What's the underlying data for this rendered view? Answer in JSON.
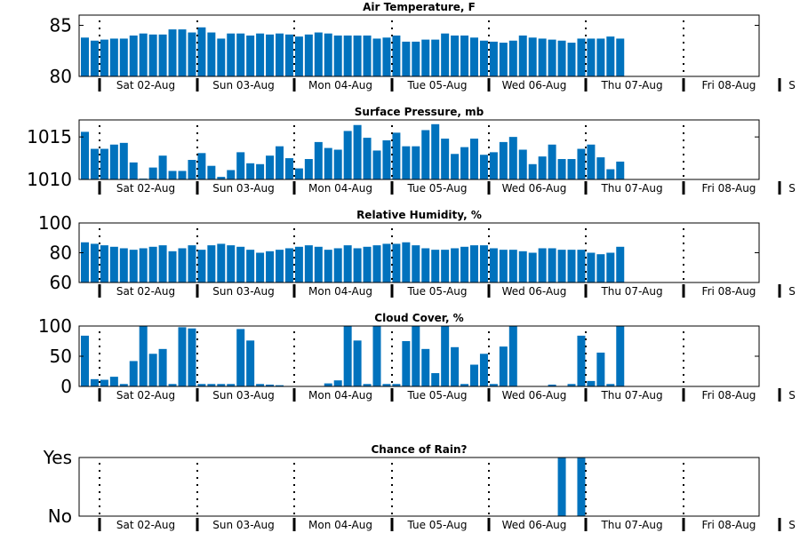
{
  "colors": {
    "bar": "#0072BD"
  },
  "chart_data": [
    {
      "type": "bar",
      "title": "Air Temperature, F",
      "ylim": [
        80,
        86
      ],
      "yticks": [
        80,
        85
      ],
      "ytick_labels": [
        "80",
        "85"
      ],
      "xtick_labels": [
        "Sat 02-Aug",
        "Sun 03-Aug",
        "Mon 04-Aug",
        "Tue 05-Aug",
        "Wed 06-Aug",
        "Thu 07-Aug",
        "Fri 08-Aug",
        "S"
      ],
      "values": [
        83.8,
        83.5,
        83.6,
        83.7,
        83.7,
        84.0,
        84.2,
        84.1,
        84.1,
        84.6,
        84.6,
        84.3,
        84.8,
        84.3,
        83.7,
        84.2,
        84.2,
        84.0,
        84.2,
        84.1,
        84.2,
        84.1,
        83.9,
        84.1,
        84.3,
        84.2,
        84.0,
        84.0,
        84.0,
        84.0,
        83.7,
        83.8,
        84.0,
        83.4,
        83.4,
        83.6,
        83.6,
        84.2,
        84.0,
        84.0,
        83.8,
        83.5,
        83.4,
        83.3,
        83.5,
        84.0,
        83.8,
        83.7,
        83.6,
        83.5,
        83.3,
        83.7,
        83.7,
        83.7,
        83.9,
        83.7
      ]
    },
    {
      "type": "bar",
      "title": "Surface Pressure, mb",
      "ylim": [
        1010,
        1017
      ],
      "yticks": [
        1010,
        1015
      ],
      "ytick_labels": [
        "1010",
        "1015"
      ],
      "xtick_labels": [
        "Sat 02-Aug",
        "Sun 03-Aug",
        "Mon 04-Aug",
        "Tue 05-Aug",
        "Wed 06-Aug",
        "Thu 07-Aug",
        "Fri 08-Aug",
        "S"
      ],
      "values": [
        1015.6,
        1013.6,
        1013.6,
        1014.1,
        1014.3,
        1012.0,
        1010.1,
        1011.4,
        1012.8,
        1011.0,
        1011.0,
        1012.3,
        1013.1,
        1011.6,
        1010.3,
        1011.1,
        1013.2,
        1011.9,
        1011.8,
        1012.8,
        1013.9,
        1012.5,
        1011.3,
        1012.4,
        1014.4,
        1013.7,
        1013.5,
        1015.7,
        1016.4,
        1014.9,
        1013.4,
        1014.6,
        1015.5,
        1013.9,
        1013.9,
        1015.8,
        1016.5,
        1014.8,
        1013.0,
        1013.8,
        1014.8,
        1012.9,
        1013.2,
        1014.4,
        1015.0,
        1013.5,
        1011.8,
        1012.7,
        1014.1,
        1012.4,
        1012.4,
        1013.6,
        1014.1,
        1012.6,
        1011.2,
        1012.1
      ]
    },
    {
      "type": "bar",
      "title": "Relative Humidity, %",
      "ylim": [
        60,
        100
      ],
      "yticks": [
        60,
        80,
        100
      ],
      "ytick_labels": [
        "60",
        "80",
        "100"
      ],
      "xtick_labels": [
        "Sat 02-Aug",
        "Sun 03-Aug",
        "Mon 04-Aug",
        "Tue 05-Aug",
        "Wed 06-Aug",
        "Thu 07-Aug",
        "Fri 08-Aug",
        "S"
      ],
      "values": [
        87,
        86,
        85,
        84,
        83,
        82,
        83,
        84,
        85,
        81,
        83,
        85,
        82,
        85,
        86,
        85,
        84,
        82,
        80,
        81,
        82,
        83,
        84,
        85,
        84,
        82,
        83,
        85,
        83,
        84,
        85,
        86,
        86,
        87,
        85,
        83,
        82,
        82,
        83,
        84,
        85,
        85,
        83,
        82,
        82,
        81,
        80,
        83,
        83,
        82,
        82,
        82,
        80,
        79,
        80,
        84
      ]
    },
    {
      "type": "bar",
      "title": "Cloud Cover, %",
      "ylim": [
        0,
        100
      ],
      "yticks": [
        0,
        50,
        100
      ],
      "ytick_labels": [
        "0",
        "50",
        "100"
      ],
      "xtick_labels": [
        "Sat 02-Aug",
        "Sun 03-Aug",
        "Mon 04-Aug",
        "Tue 05-Aug",
        "Wed 06-Aug",
        "Thu 07-Aug",
        "Fri 08-Aug",
        "S"
      ],
      "values": [
        84,
        12,
        11,
        16,
        4,
        42,
        100,
        54,
        62,
        4,
        98,
        96,
        4,
        4,
        4,
        4,
        95,
        76,
        4,
        3,
        2,
        0,
        0,
        0,
        0,
        5,
        10,
        100,
        76,
        4,
        100,
        4,
        4,
        75,
        100,
        62,
        22,
        100,
        65,
        4,
        36,
        54,
        4,
        66,
        100,
        0,
        0,
        0,
        3,
        0,
        4,
        84,
        9,
        56,
        4,
        100
      ]
    },
    {
      "type": "bar",
      "title": "Chance of Rain?",
      "ylim": [
        0,
        1
      ],
      "yticks": [
        0,
        1
      ],
      "ytick_labels": [
        "No",
        "Yes"
      ],
      "xtick_labels": [
        "Sat 02-Aug",
        "Sun 03-Aug",
        "Mon 04-Aug",
        "Tue 05-Aug",
        "Wed 06-Aug",
        "Thu 07-Aug",
        "Fri 08-Aug",
        "S"
      ],
      "values": [
        0,
        0,
        0,
        0,
        0,
        0,
        0,
        0,
        0,
        0,
        0,
        0,
        0,
        0,
        0,
        0,
        0,
        0,
        0,
        0,
        0,
        0,
        0,
        0,
        0,
        0,
        0,
        0,
        0,
        0,
        0,
        0,
        0,
        0,
        0,
        0,
        0,
        0,
        0,
        0,
        0,
        0,
        0,
        0,
        0,
        0,
        0,
        0,
        0,
        1,
        0,
        1,
        0,
        0,
        0,
        0
      ]
    }
  ]
}
